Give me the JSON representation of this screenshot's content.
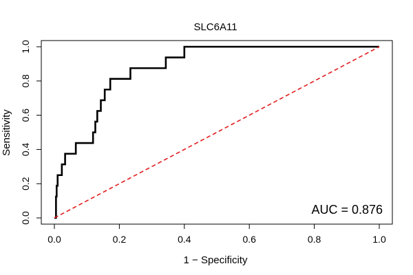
{
  "chart_data": {
    "type": "line",
    "title": "SLC6A11",
    "xlabel": "1 − Specificity",
    "ylabel": "Sensitivity",
    "xlim": [
      0,
      1
    ],
    "ylim": [
      0,
      1
    ],
    "x_ticks": [
      "0.0",
      "0.2",
      "0.4",
      "0.6",
      "0.8",
      "1.0"
    ],
    "y_ticks": [
      "0.0",
      "0.2",
      "0.4",
      "0.6",
      "0.8",
      "1.0"
    ],
    "grid": false,
    "legend": "none",
    "annotation": "AUC = 0.876",
    "series": [
      {
        "name": "ROC curve",
        "color": "#000000",
        "style": "solid",
        "x": [
          0.0,
          0.005,
          0.005,
          0.007,
          0.007,
          0.01,
          0.01,
          0.023,
          0.023,
          0.033,
          0.033,
          0.066,
          0.066,
          0.119,
          0.119,
          0.126,
          0.126,
          0.132,
          0.132,
          0.143,
          0.143,
          0.155,
          0.155,
          0.172,
          0.172,
          0.234,
          0.234,
          0.343,
          0.343,
          0.4,
          0.4,
          1.0
        ],
        "y": [
          0.0,
          0.0,
          0.125,
          0.125,
          0.188,
          0.188,
          0.25,
          0.25,
          0.313,
          0.313,
          0.375,
          0.375,
          0.4375,
          0.4375,
          0.5,
          0.5,
          0.5625,
          0.5625,
          0.625,
          0.625,
          0.6875,
          0.6875,
          0.75,
          0.75,
          0.8125,
          0.8125,
          0.875,
          0.875,
          0.9375,
          0.9375,
          1.0,
          1.0
        ]
      },
      {
        "name": "Reference diagonal",
        "color": "#e31a1c",
        "style": "dashed",
        "x": [
          0.0,
          1.0
        ],
        "y": [
          0.0,
          1.0
        ]
      }
    ]
  }
}
